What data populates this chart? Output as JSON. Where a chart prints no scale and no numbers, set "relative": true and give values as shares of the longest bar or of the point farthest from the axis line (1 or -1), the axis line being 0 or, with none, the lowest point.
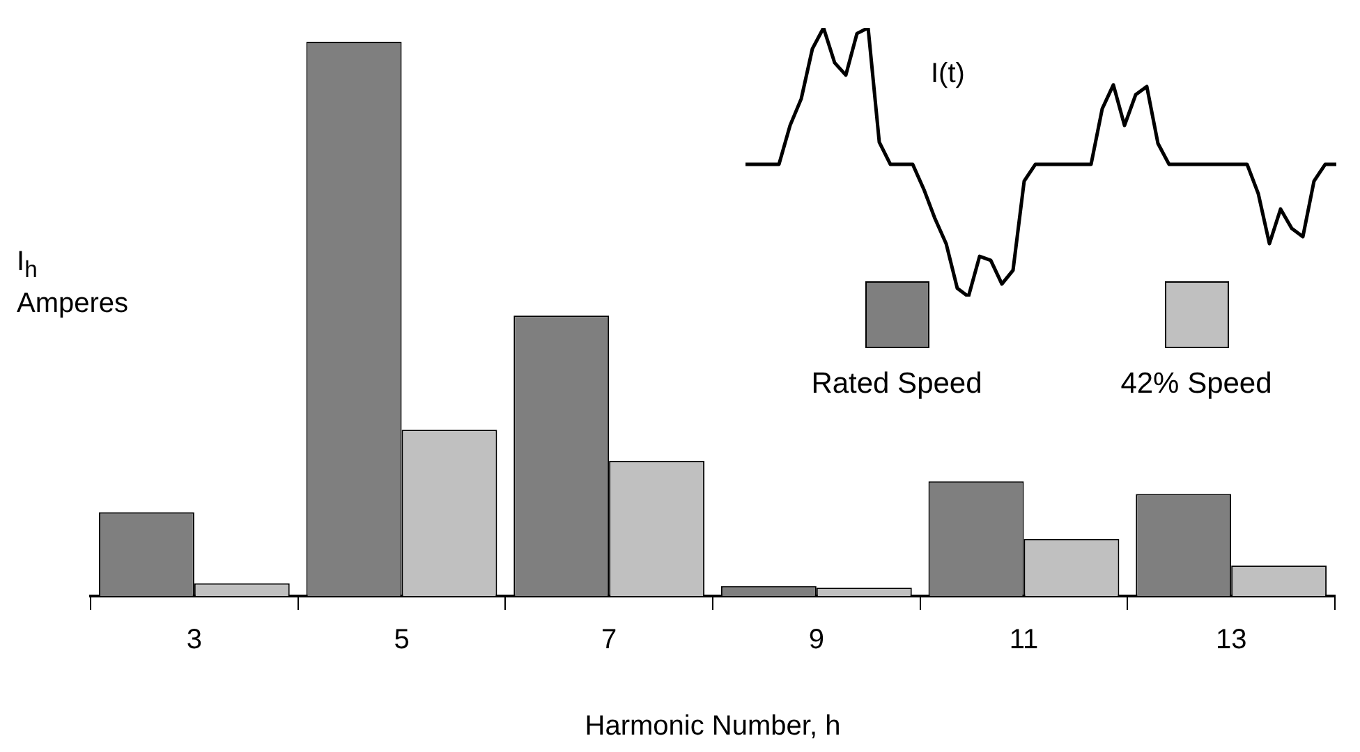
{
  "chart_data": [
    {
      "type": "bar",
      "relative": true,
      "xlabel": "Harmonic Number, h",
      "ylabel": "I$_{h}$\nAmperes",
      "legend": "right",
      "categories": [
        "3",
        "5",
        "7",
        "9",
        "11",
        "13"
      ],
      "series": [
        {
          "name": "Rated Speed",
          "color": "#7f7f7f",
          "values": [
            0.151,
            1,
            0.506,
            0.018,
            0.207,
            0.184
          ]
        },
        {
          "name": "42% Speed",
          "color": "#c0c0c0",
          "values": [
            0.023,
            0.3,
            0.244,
            0.015,
            0.103,
            0.055
          ]
        }
      ]
    },
    {
      "type": "line",
      "title": "I(t)",
      "relative": true,
      "marker": "none",
      "categories": [
        null,
        null,
        null,
        null,
        null,
        null,
        null,
        null,
        null,
        null,
        null,
        null,
        null,
        null,
        null,
        null,
        null,
        null,
        null,
        null,
        null,
        null,
        null,
        null,
        null,
        null,
        null,
        null,
        null,
        null,
        null,
        null,
        null,
        null,
        null,
        null,
        null,
        null,
        null,
        null,
        null,
        null,
        null,
        null,
        null,
        null,
        null,
        null,
        null,
        null,
        null,
        null,
        null,
        null
      ],
      "series": [
        {
          "color": "#000000",
          "values": [
            0.492,
            0.492,
            0.492,
            0.492,
            0.637,
            0.736,
            0.922,
            1,
            0.87,
            0.824,
            0.979,
            1,
            0.575,
            0.492,
            0.492,
            0.492,
            0.399,
            0.29,
            0.197,
            0.031,
            0,
            0.15,
            0.135,
            0.047,
            0.098,
            0.43,
            0.492,
            0.492,
            0.492,
            0.492,
            0.492,
            0.492,
            0.699,
            0.788,
            0.637,
            0.751,
            0.782,
            0.57,
            0.492,
            0.492,
            0.492,
            0.492,
            0.492,
            0.492,
            0.492,
            0.492,
            0.383,
            0.197,
            0.326,
            0.254,
            0.223,
            0.43,
            0.492,
            0.492
          ]
        }
      ]
    }
  ]
}
